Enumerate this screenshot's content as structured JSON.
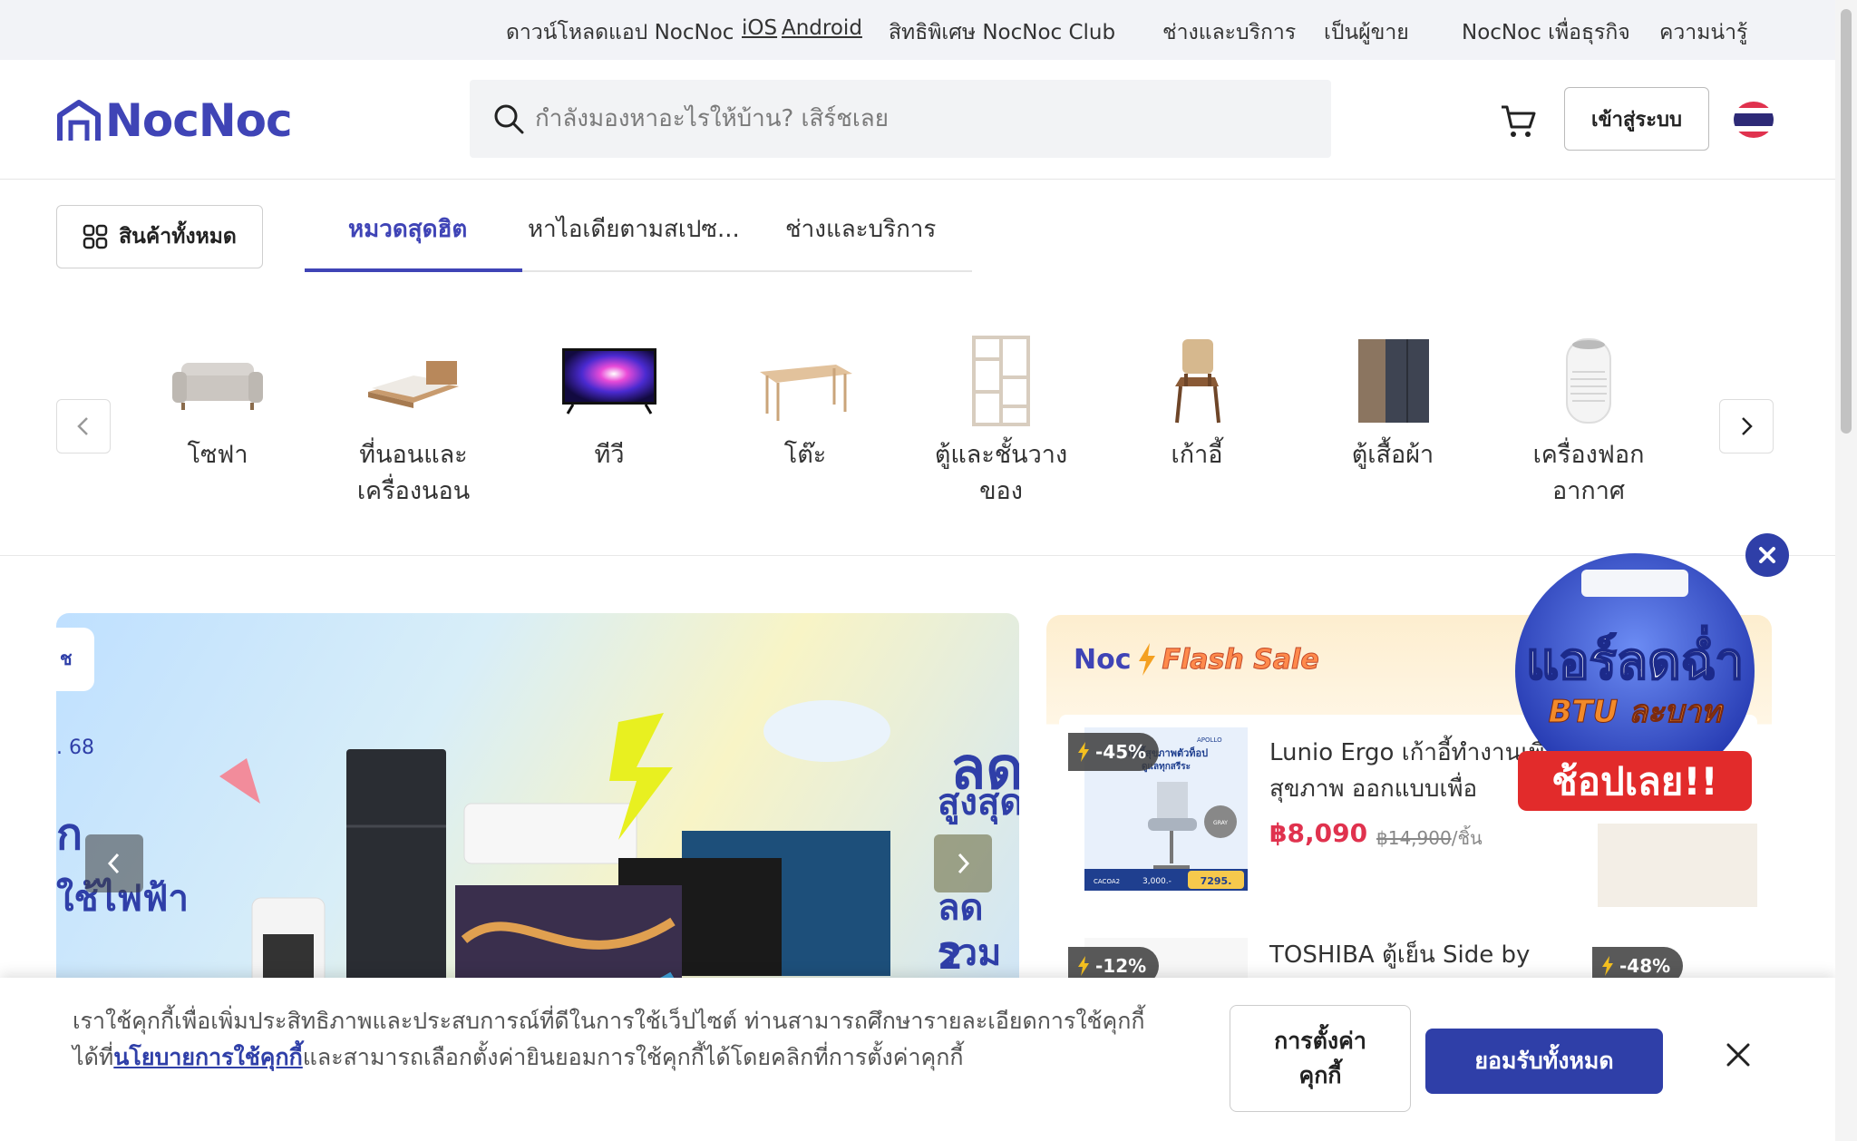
{
  "topbar": {
    "download_text": "ดาวน์โหลดแอป NocNoc",
    "ios": "iOS",
    "android": "Android",
    "club": "สิทธิพิเศษ NocNoc Club",
    "services": "ช่างและบริการ",
    "seller": "เป็นผู้ขาย",
    "business": "NocNoc เพื่อธุรกิจ",
    "news": "ความน่ารู้"
  },
  "header": {
    "logo": "NocNoc",
    "search_placeholder": "กำลังมองหาอะไรให้บ้าน? เสิร์ชเลย",
    "login": "เข้าสู่ระบบ"
  },
  "nav": {
    "all_products": "สินค้าทั้งหมด",
    "tabs": [
      "หมวดสุดฮิต",
      "หาไอเดียตามสเปซ...",
      "ช่างและบริการ"
    ]
  },
  "categories": [
    {
      "line1": "โซฟา",
      "line2": ""
    },
    {
      "line1": "ที่นอนและ",
      "line2": "เครื่องนอน"
    },
    {
      "line1": "ทีวี",
      "line2": ""
    },
    {
      "line1": "โต๊ะ",
      "line2": ""
    },
    {
      "line1": "ตู้และชั้นวาง",
      "line2": "ของ"
    },
    {
      "line1": "เก้าอี้",
      "line2": ""
    },
    {
      "line1": "ตู้เสื้อผ้า",
      "line2": ""
    },
    {
      "line1": "เครื่องฟอก",
      "line2": "อากาศ"
    }
  ],
  "banner": {
    "left_text_1": "ช",
    "left_text_2": ". 68",
    "left_text_3": "ก",
    "left_text_4": "ใช้ไฟฟ้า",
    "right_text_1": "ลด",
    "right_text_2": "สูงสุด",
    "right_text_3": "ลด 2",
    "right_text_4": "รวมสู"
  },
  "flash": {
    "noc": "Noc",
    "title": "Flash Sale",
    "item1": {
      "discount": "-45%",
      "name": "Lunio Ergo เก้าอี้ทำงานเพื่อสุขภาพ ออกแบบเพื่อ",
      "price": "฿8,090",
      "old_price": "฿14,900",
      "unit": "/ชิ้น",
      "thumb_brand": "APOLLO",
      "thumb_headline": "เก้าอี้สุขภาพตัวท็อป",
      "thumb_sub": "ดูแลทุกสรีระ",
      "thumb_badge": "GRAY",
      "thumb_model": "CACOA2",
      "thumb_price_small": "3,000.-",
      "thumb_price": "7295."
    },
    "item2": {
      "discount": "-12%",
      "name": "TOSHIBA ตู้เย็น Side by"
    },
    "item3": {
      "discount": "-48%"
    }
  },
  "promo": {
    "line1": "แอร์ลดฉ่ำ",
    "line2": "BTU ละบาท",
    "cta": "ช้อปเลย!!"
  },
  "cookie": {
    "text_before": "เราใช้คุกกี้เพื่อเพิ่มประสิทธิภาพและประสบการณ์ที่ดีในการใช้เว็ปไซต์ ท่านสามารถศึกษารายละเอียดการใช้คุกกี้ได้ที่",
    "link": "นโยบายการใช้คุกกี้",
    "text_after": "และสามารถเลือกตั้งค่ายินยอมการใช้คุกกี้ได้โดยคลิกที่การตั้งค่าคุกกี้",
    "settings_1": "การตั้งค่า",
    "settings_2": "คุกกี้",
    "accept": "ยอมรับทั้งหมด"
  },
  "colors": {
    "brand": "#3f44b6",
    "accent": "#2f3fa8",
    "price": "#e0324e"
  }
}
